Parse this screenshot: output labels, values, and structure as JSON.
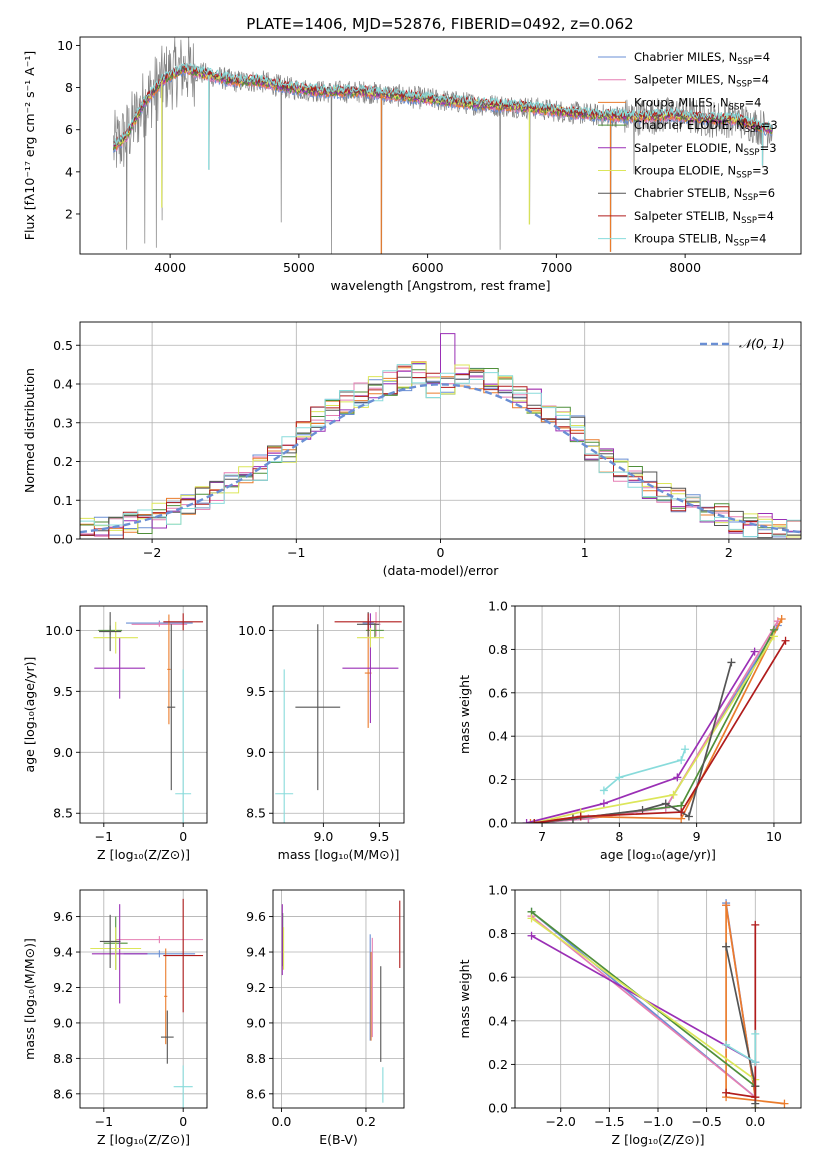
{
  "figure_title": "PLATE=1406, MJD=52876, FIBERID=0492, z=0.062",
  "colors": {
    "Chabrier MILES": "#6a8fd4",
    "Salpeter MILES": "#e57fb3",
    "Kroupa MILES": "#ea7c2c",
    "Chabrier ELODIE": "#4f8f3a",
    "Salpeter ELODIE": "#9a2fb5",
    "Kroupa ELODIE": "#dce65a",
    "Chabrier STELIB": "#555555",
    "Salpeter STELIB": "#b01c1c",
    "Kroupa STELIB": "#88dbdb",
    "data": "#808080",
    "normal": "#6a8fd4"
  },
  "chart_data": [
    {
      "id": "spectrum",
      "type": "line",
      "xlabel": "wavelength [Angstrom, rest frame]",
      "ylabel": "Flux [fλ10⁻¹⁷ erg cm⁻² s⁻¹ A⁻¹]",
      "xlim": [
        3300,
        8900
      ],
      "ylim": [
        0.1,
        10.4
      ],
      "xticks": [
        4000,
        5000,
        6000,
        7000,
        8000
      ],
      "yticks": [
        2,
        4,
        6,
        8,
        10
      ],
      "legend_position": "top-right",
      "legend": [
        "Chabrier MILES, N_SSP=4",
        "Salpeter MILES, N_SSP=4",
        "Kroupa MILES, N_SSP=4",
        "Chabrier ELODIE, N_SSP=3",
        "Salpeter ELODIE, N_SSP=3",
        "Kroupa ELODIE, N_SSP=3",
        "Chabrier STELIB, N_SSP=6",
        "Salpeter STELIB, N_SSP=4",
        "Kroupa STELIB, N_SSP=4"
      ],
      "continuum": [
        [
          3560,
          5.2
        ],
        [
          3650,
          5.6
        ],
        [
          3800,
          7.3
        ],
        [
          3950,
          8.4
        ],
        [
          4100,
          8.9
        ],
        [
          4300,
          8.6
        ],
        [
          4500,
          8.3
        ],
        [
          4700,
          8.3
        ],
        [
          4900,
          8.0
        ],
        [
          5200,
          7.8
        ],
        [
          5500,
          7.8
        ],
        [
          5800,
          7.6
        ],
        [
          6100,
          7.4
        ],
        [
          6400,
          7.2
        ],
        [
          6700,
          7.1
        ],
        [
          7000,
          6.9
        ],
        [
          7300,
          6.7
        ],
        [
          7600,
          6.6
        ],
        [
          7900,
          6.7
        ],
        [
          8200,
          6.5
        ],
        [
          8400,
          6.5
        ],
        [
          8600,
          6.1
        ],
        [
          8680,
          6.0
        ]
      ],
      "spikes": [
        [
          3660,
          0.3
        ],
        [
          3800,
          0.6
        ],
        [
          3890,
          0.4
        ],
        [
          3935,
          1.7
        ],
        [
          4300,
          4.1
        ],
        [
          4860,
          1.6
        ],
        [
          5250,
          0.1
        ],
        [
          5640,
          0.1
        ],
        [
          6560,
          0.3
        ],
        [
          6790,
          1.5
        ],
        [
          7420,
          0.2
        ],
        [
          7600,
          3.9
        ],
        [
          8600,
          4.2
        ]
      ]
    },
    {
      "id": "residuals",
      "type": "histogram",
      "xlabel": "(data-model)/error",
      "ylabel": "Normed distribution",
      "xlim": [
        -2.5,
        2.5
      ],
      "ylim": [
        0,
        0.56
      ],
      "xticks": [
        -2,
        -1,
        0,
        1,
        2
      ],
      "xtick_labels": [
        "−2",
        "−1",
        "0",
        "1",
        "2"
      ],
      "yticks": [
        0.0,
        0.1,
        0.2,
        0.3,
        0.4,
        0.5
      ],
      "ytick_labels": [
        "0.0",
        "0.1",
        "0.2",
        "0.3",
        "0.4",
        "0.5"
      ],
      "bin_width": 0.1,
      "legend": [
        "𝒩(0, 1)"
      ],
      "legend_position": "top-right"
    },
    {
      "id": "age_vs_Z",
      "type": "errorbar",
      "xlabel": "Z [log₁₀(Z/Z⊙)]",
      "ylabel": "age  [log₁₀(age/yr)]",
      "xlim": [
        -1.3,
        0.3
      ],
      "ylim": [
        8.42,
        10.2
      ],
      "xticks": [
        -1,
        0
      ],
      "xtick_labels": [
        "−1",
        "0"
      ],
      "yticks": [
        8.5,
        9.0,
        9.5,
        10.0
      ],
      "ytick_labels": [
        "8.5",
        "9.0",
        "9.5",
        "10.0"
      ],
      "points": [
        {
          "s": "Chabrier MILES",
          "x": -0.3,
          "xerr": 0.42,
          "y": 10.06,
          "yerr": 0.02
        },
        {
          "s": "Salpeter MILES",
          "x": -0.3,
          "xerr": 0.35,
          "y": 10.05,
          "yerr": 0.02
        },
        {
          "s": "Kroupa MILES",
          "x": -0.18,
          "xerr": 0.02,
          "y": 9.68,
          "yerr": 0.45
        },
        {
          "s": "Chabrier ELODIE",
          "x": -0.92,
          "xerr": 0.15,
          "y": 10.0,
          "yerr": 0.04
        },
        {
          "s": "Salpeter ELODIE",
          "x": -0.8,
          "xerr": 0.32,
          "y": 9.69,
          "yerr": 0.25
        },
        {
          "s": "Kroupa ELODIE",
          "x": -0.85,
          "xerr": 0.28,
          "y": 9.94,
          "yerr": 0.13
        },
        {
          "s": "Chabrier STELIB",
          "x": -0.92,
          "xerr": 0.14,
          "y": 9.99,
          "yerr": 0.16
        },
        {
          "s": "Chabrier STELIB",
          "x": -0.15,
          "xerr": 0.05,
          "y": 9.37,
          "yerr": 0.68
        },
        {
          "s": "Salpeter STELIB",
          "x": 0.0,
          "xerr": 0.25,
          "y": 10.07,
          "yerr": 0.07
        },
        {
          "s": "Kroupa STELIB",
          "x": 0.0,
          "xerr": 0.1,
          "y": 8.66,
          "yerr": 1.02
        }
      ]
    },
    {
      "id": "age_vs_mass",
      "type": "errorbar",
      "xlabel": "mass [log₁₀(M/M⊙)]",
      "ylabel": "",
      "xlim": [
        8.55,
        9.72
      ],
      "ylim": [
        8.42,
        10.2
      ],
      "xticks": [
        9.0,
        9.5
      ],
      "xtick_labels": [
        "9.0",
        "9.5"
      ],
      "yticks": [
        8.5,
        9.0,
        9.5,
        10.0
      ],
      "ytick_labels": [
        "8.5",
        "9.0",
        "9.5",
        "10.0"
      ],
      "points": [
        {
          "s": "Chabrier MILES",
          "x": 9.4,
          "xerr": 0.05,
          "y": 10.06,
          "yerr": 0.02
        },
        {
          "s": "Salpeter MILES",
          "x": 9.47,
          "xerr": 0.04,
          "y": 10.05,
          "yerr": 0.1
        },
        {
          "s": "Kroupa MILES",
          "x": 9.4,
          "xerr": 0.03,
          "y": 9.65,
          "yerr": 0.45
        },
        {
          "s": "Chabrier ELODIE",
          "x": 9.46,
          "xerr": 0.08,
          "y": 10.0,
          "yerr": 0.06
        },
        {
          "s": "Salpeter ELODIE",
          "x": 9.42,
          "xerr": 0.25,
          "y": 9.69,
          "yerr": 0.45
        },
        {
          "s": "Kroupa ELODIE",
          "x": 9.42,
          "xerr": 0.12,
          "y": 9.94,
          "yerr": 0.08
        },
        {
          "s": "Chabrier STELIB",
          "x": 9.4,
          "xerr": 0.1,
          "y": 10.05,
          "yerr": 0.1
        },
        {
          "s": "Chabrier STELIB",
          "x": 8.95,
          "xerr": 0.2,
          "y": 9.37,
          "yerr": 0.68
        },
        {
          "s": "Salpeter STELIB",
          "x": 9.4,
          "xerr": 0.3,
          "y": 10.07,
          "yerr": 0.07
        },
        {
          "s": "Kroupa STELIB",
          "x": 8.65,
          "xerr": 0.08,
          "y": 8.66,
          "yerr": 1.02
        }
      ]
    },
    {
      "id": "weight_vs_age",
      "type": "line",
      "xlabel": "age  [log₁₀(age/yr)]",
      "ylabel": "mass weight",
      "xlim": [
        6.65,
        10.35
      ],
      "ylim": [
        0,
        1
      ],
      "xticks": [
        7,
        8,
        9,
        10
      ],
      "xtick_labels": [
        "7",
        "8",
        "9",
        "10"
      ],
      "yticks": [
        0.0,
        0.2,
        0.4,
        0.6,
        0.8,
        1.0
      ],
      "ytick_labels": [
        "0.0",
        "0.2",
        "0.4",
        "0.6",
        "0.8",
        "1.0"
      ],
      "series": [
        {
          "name": "Chabrier MILES",
          "x": [
            6.9,
            7.6,
            8.6,
            10.05
          ],
          "y": [
            0.0,
            0.02,
            0.07,
            0.91
          ]
        },
        {
          "name": "Salpeter MILES",
          "x": [
            6.9,
            7.6,
            8.6,
            10.05
          ],
          "y": [
            0.0,
            0.02,
            0.07,
            0.93
          ]
        },
        {
          "name": "Kroupa MILES",
          "x": [
            6.85,
            7.5,
            8.8,
            10.1
          ],
          "y": [
            0.0,
            0.03,
            0.02,
            0.94
          ]
        },
        {
          "name": "Chabrier ELODIE",
          "x": [
            6.9,
            7.4,
            8.8,
            10.0
          ],
          "y": [
            0.0,
            0.02,
            0.08,
            0.89
          ]
        },
        {
          "name": "Salpeter ELODIE",
          "x": [
            6.8,
            7.8,
            8.75,
            9.75
          ],
          "y": [
            0.0,
            0.09,
            0.21,
            0.79
          ]
        },
        {
          "name": "Kroupa ELODIE",
          "x": [
            6.9,
            7.5,
            8.7,
            10.0
          ],
          "y": [
            0.0,
            0.05,
            0.13,
            0.86
          ]
        },
        {
          "name": "Chabrier STELIB",
          "x": [
            6.9,
            7.4,
            8.3,
            8.6,
            8.9,
            9.45
          ],
          "y": [
            0.0,
            0.02,
            0.06,
            0.09,
            0.03,
            0.74
          ]
        },
        {
          "name": "Salpeter STELIB",
          "x": [
            6.9,
            7.5,
            8.8,
            10.15
          ],
          "y": [
            0.0,
            0.03,
            0.05,
            0.84
          ]
        },
        {
          "name": "Kroupa STELIB",
          "x": [
            7.8,
            8.0,
            8.8,
            8.85
          ],
          "y": [
            0.15,
            0.21,
            0.29,
            0.34
          ]
        }
      ]
    },
    {
      "id": "mass_vs_Z",
      "type": "errorbar",
      "xlabel": "Z [log₁₀(Z/Z⊙)]",
      "ylabel": "mass [log₁₀(M/M⊙)]",
      "xlim": [
        -1.3,
        0.3
      ],
      "ylim": [
        8.52,
        9.75
      ],
      "xticks": [
        -1,
        0
      ],
      "xtick_labels": [
        "−1",
        "0"
      ],
      "yticks": [
        8.6,
        8.8,
        9.0,
        9.2,
        9.4,
        9.6
      ],
      "ytick_labels": [
        "8.6",
        "8.8",
        "9.0",
        "9.2",
        "9.4",
        "9.6"
      ],
      "points": [
        {
          "s": "Chabrier MILES",
          "x": -0.3,
          "xerr": 0.45,
          "y": 9.39,
          "yerr": 0.02
        },
        {
          "s": "Salpeter MILES",
          "x": -0.3,
          "xerr": 0.55,
          "y": 9.47,
          "yerr": 0.02
        },
        {
          "s": "Kroupa MILES",
          "x": -0.22,
          "xerr": 0.02,
          "y": 9.15,
          "yerr": 0.27
        },
        {
          "s": "Chabrier ELODIE",
          "x": -0.85,
          "xerr": 0.15,
          "y": 9.45,
          "yerr": 0.15
        },
        {
          "s": "Salpeter ELODIE",
          "x": -0.8,
          "xerr": 0.35,
          "y": 9.39,
          "yerr": 0.28
        },
        {
          "s": "Kroupa ELODIE",
          "x": -0.85,
          "xerr": 0.32,
          "y": 9.42,
          "yerr": 0.12
        },
        {
          "s": "Chabrier STELIB",
          "x": -0.92,
          "xerr": 0.13,
          "y": 9.46,
          "yerr": 0.15
        },
        {
          "s": "Chabrier STELIB",
          "x": -0.2,
          "xerr": 0.08,
          "y": 8.92,
          "yerr": 0.15
        },
        {
          "s": "Salpeter STELIB",
          "x": 0.0,
          "xerr": 0.25,
          "y": 9.38,
          "yerr": 0.32
        },
        {
          "s": "Kroupa STELIB",
          "x": 0.0,
          "xerr": 0.12,
          "y": 8.64,
          "yerr": 0.12
        }
      ]
    },
    {
      "id": "mass_vs_ebv",
      "type": "errorbar",
      "xlabel": "E(B-V)",
      "ylabel": "",
      "xlim": [
        -0.02,
        0.29
      ],
      "ylim": [
        8.52,
        9.75
      ],
      "xticks": [
        0.0,
        0.2
      ],
      "xtick_labels": [
        "0.0",
        "0.2"
      ],
      "yticks": [
        8.6,
        8.8,
        9.0,
        9.2,
        9.4,
        9.6
      ],
      "ytick_labels": [
        "8.6",
        "8.8",
        "9.0",
        "9.2",
        "9.4",
        "9.6"
      ],
      "points": [
        {
          "s": "Chabrier MILES",
          "x": 0.21,
          "xerr": 0.0,
          "y": 9.2,
          "yerr": 0.3
        },
        {
          "s": "Salpeter MILES",
          "x": 0.215,
          "xerr": 0.0,
          "y": 9.2,
          "yerr": 0.28
        },
        {
          "s": "Kroupa MILES",
          "x": 0.212,
          "xerr": 0.0,
          "y": 9.15,
          "yerr": 0.25
        },
        {
          "s": "Chabrier ELODIE",
          "x": 0.003,
          "xerr": 0.0,
          "y": 9.47,
          "yerr": 0.15
        },
        {
          "s": "Salpeter ELODIE",
          "x": 0.002,
          "xerr": 0.0,
          "y": 9.47,
          "yerr": 0.2
        },
        {
          "s": "Kroupa ELODIE",
          "x": 0.005,
          "xerr": 0.0,
          "y": 9.42,
          "yerr": 0.12
        },
        {
          "s": "Chabrier STELIB",
          "x": 0.235,
          "xerr": 0.0,
          "y": 9.05,
          "yerr": 0.27
        },
        {
          "s": "Salpeter STELIB",
          "x": 0.28,
          "xerr": 0.0,
          "y": 9.5,
          "yerr": 0.19
        },
        {
          "s": "Kroupa STELIB",
          "x": 0.24,
          "xerr": 0.0,
          "y": 8.65,
          "yerr": 0.1
        }
      ]
    },
    {
      "id": "weight_vs_Z",
      "type": "line",
      "xlabel": "Z [log₁₀(Z/Z⊙)]",
      "ylabel": "mass weight",
      "xlim": [
        -2.47,
        0.47
      ],
      "ylim": [
        0,
        1
      ],
      "xticks": [
        -2.0,
        -1.5,
        -1.0,
        -0.5,
        0.0
      ],
      "xtick_labels": [
        "−2.0",
        "−1.5",
        "−1.0",
        "−0.5",
        "0.0"
      ],
      "yticks": [
        0.0,
        0.2,
        0.4,
        0.6,
        0.8,
        1.0
      ],
      "ytick_labels": [
        "0.0",
        "0.2",
        "0.4",
        "0.6",
        "0.8",
        "1.0"
      ],
      "series": [
        {
          "name": "Chabrier MILES",
          "x": [
            -2.3,
            0.0,
            -0.3
          ],
          "y": [
            0.9,
            0.05,
            0.94
          ]
        },
        {
          "name": "Salpeter MILES",
          "x": [
            -2.3,
            0.0,
            -0.3
          ],
          "y": [
            0.88,
            0.05,
            0.93
          ]
        },
        {
          "name": "Kroupa MILES",
          "x": [
            0.3,
            -0.3,
            -0.3,
            0.0
          ],
          "y": [
            0.02,
            0.05,
            0.93,
            0.05
          ]
        },
        {
          "name": "Chabrier ELODIE",
          "x": [
            -2.3,
            0.0,
            0.0
          ],
          "y": [
            0.9,
            0.1,
            0.0
          ]
        },
        {
          "name": "Salpeter ELODIE",
          "x": [
            -2.3,
            0.0,
            0.0
          ],
          "y": [
            0.79,
            0.21,
            0.0
          ]
        },
        {
          "name": "Kroupa ELODIE",
          "x": [
            -2.3,
            0.0,
            0.0
          ],
          "y": [
            0.87,
            0.13,
            0.0
          ]
        },
        {
          "name": "Chabrier STELIB",
          "x": [
            -0.3,
            0.0,
            0.0
          ],
          "y": [
            0.74,
            0.1,
            0.02
          ]
        },
        {
          "name": "Salpeter STELIB",
          "x": [
            -0.3,
            0.0,
            0.0
          ],
          "y": [
            0.07,
            0.05,
            0.84
          ]
        },
        {
          "name": "Kroupa STELIB",
          "x": [
            -0.3,
            0.0,
            0.0
          ],
          "y": [
            0.29,
            0.21,
            0.34
          ]
        }
      ]
    }
  ]
}
